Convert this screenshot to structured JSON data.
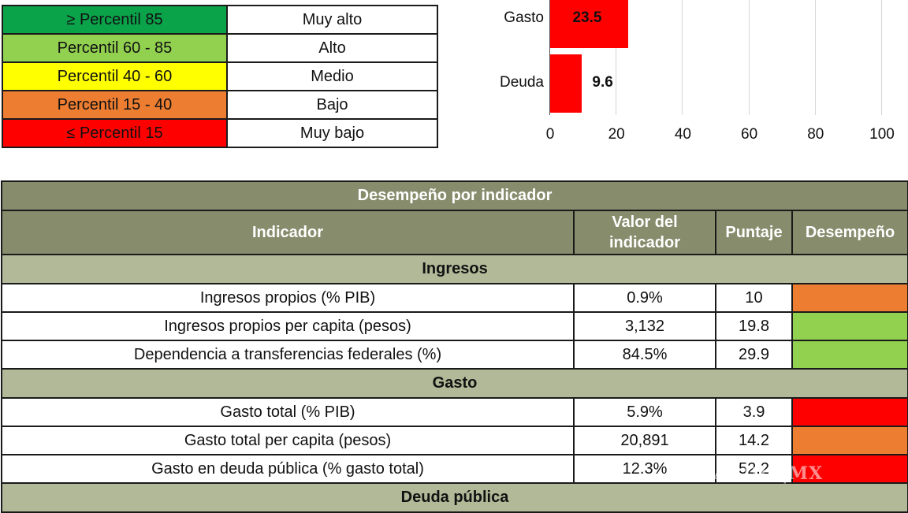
{
  "legend": {
    "rows": [
      {
        "range": "≥ Percentil 85",
        "label": "Muy alto",
        "color": "#0aa34a",
        "text_color": "#111111"
      },
      {
        "range": "Percentil 60 - 85",
        "label": "Alto",
        "color": "#92d050",
        "text_color": "#111111"
      },
      {
        "range": "Percentil 40 - 60",
        "label": "Medio",
        "color": "#ffff00",
        "text_color": "#111111"
      },
      {
        "range": "Percentil 15 - 40",
        "label": "Bajo",
        "color": "#ed7d31",
        "text_color": "#111111"
      },
      {
        "range": "≤ Percentil 15",
        "label": "Muy bajo",
        "color": "#ff0000",
        "text_color": "#111111"
      }
    ]
  },
  "chart_data": {
    "type": "bar",
    "orientation": "horizontal",
    "categories": [
      "Gasto",
      "Deuda"
    ],
    "values": [
      23.5,
      9.6
    ],
    "bar_color": "#ff0000",
    "data_labels": [
      "23.5",
      "9.6"
    ],
    "title": "",
    "xlabel": "",
    "ylabel": "",
    "xlim": [
      0,
      100
    ],
    "xticks": [
      "0",
      "20",
      "40",
      "60",
      "80",
      "100"
    ],
    "grid": "vertical"
  },
  "table": {
    "title": "Desempeño por indicador",
    "headers": [
      "Indicador",
      "Valor del indicador",
      "Puntaje",
      "Desempeño"
    ],
    "sections": [
      {
        "name": "Ingresos",
        "rows": [
          {
            "indicador": "Ingresos propios (% PIB)",
            "valor": "0.9%",
            "puntaje": "10",
            "desempeno_color": "#ed7d31"
          },
          {
            "indicador": "Ingresos propios per capita (pesos)",
            "valor": "3,132",
            "puntaje": "19.8",
            "desempeno_color": "#92d050"
          },
          {
            "indicador": "Dependencia a transferencias federales (%)",
            "valor": "84.5%",
            "puntaje": "29.9",
            "desempeno_color": "#92d050"
          }
        ]
      },
      {
        "name": "Gasto",
        "rows": [
          {
            "indicador": "Gasto total (% PIB)",
            "valor": "5.9%",
            "puntaje": "3.9",
            "desempeno_color": "#ff0000"
          },
          {
            "indicador": "Gasto total per capita (pesos)",
            "valor": "20,891",
            "puntaje": "14.2",
            "desempeno_color": "#ed7d31"
          },
          {
            "indicador": "Gasto en deuda pública (% gasto total)",
            "valor": "12.3%",
            "puntaje": "52.2",
            "desempeno_color": "#ff0000"
          }
        ]
      },
      {
        "name": "Deuda pública",
        "rows": []
      }
    ]
  },
  "watermark": "ARDIA|MX"
}
